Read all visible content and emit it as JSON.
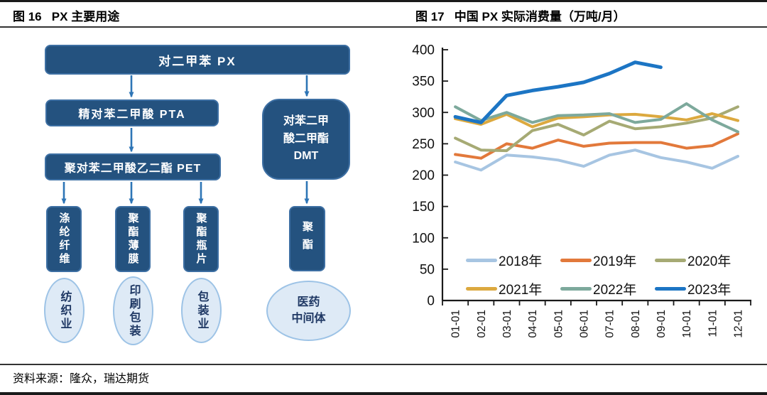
{
  "header": {
    "left_title": "图 16   PX 主要用途",
    "right_title": "图 17   中国 PX 实际消费量（万吨/月）"
  },
  "footer": {
    "source": "资料来源：隆众，瑞达期货"
  },
  "diagram": {
    "px": "对二甲苯 PX",
    "pta": "精对苯二甲酸 PTA",
    "pet": "聚对苯二甲酸乙二酯 PET",
    "dmt": "对苯二甲\n酸二甲酯\nDMT",
    "fiber": "涤纶纤维",
    "film": "聚酯薄膜",
    "bottle": "聚酯瓶片",
    "polyester": "聚酯",
    "textile": "纺织业",
    "printing": "印刷包装",
    "packaging": "包装业",
    "pharma": "医药\n中间体",
    "colors": {
      "node_fill": "#24527F",
      "node_border": "#3d6fa3",
      "arrow": "#2E75B6",
      "ellipse_fill": "#DEEAF6",
      "ellipse_border": "#9DC3E6"
    }
  },
  "chart_data": {
    "type": "line",
    "title": "中国PX实际消费量（万吨/月）",
    "xlabel": "",
    "ylabel": "",
    "unit": "万吨/月",
    "ylim": [
      0,
      400
    ],
    "y_ticks": [
      0,
      50,
      100,
      150,
      200,
      250,
      300,
      350,
      400
    ],
    "grid": false,
    "legend_position": "inside-bottom",
    "categories": [
      "01-01",
      "02-01",
      "03-01",
      "04-01",
      "05-01",
      "06-01",
      "07-01",
      "08-01",
      "09-01",
      "10-01",
      "11-01",
      "12-01"
    ],
    "series": [
      {
        "name": "2018年",
        "color": "#A7C5E2",
        "width": 4,
        "values": [
          221,
          208,
          232,
          229,
          224,
          214,
          232,
          240,
          228,
          221,
          211,
          230
        ]
      },
      {
        "name": "2019年",
        "color": "#E2793B",
        "width": 4,
        "values": [
          233,
          227,
          250,
          243,
          256,
          246,
          251,
          252,
          252,
          243,
          247,
          266
        ]
      },
      {
        "name": "2020年",
        "color": "#A6AA74",
        "width": 4,
        "values": [
          259,
          240,
          239,
          271,
          281,
          264,
          286,
          274,
          277,
          283,
          291,
          309
        ]
      },
      {
        "name": "2021年",
        "color": "#DCA93F",
        "width": 4,
        "values": [
          290,
          281,
          297,
          277,
          291,
          293,
          296,
          297,
          293,
          288,
          298,
          287
        ]
      },
      {
        "name": "2022年",
        "color": "#7DA99C",
        "width": 4,
        "values": [
          309,
          287,
          300,
          284,
          295,
          296,
          298,
          284,
          289,
          314,
          288,
          269
        ]
      },
      {
        "name": "2023年",
        "color": "#1C75C4",
        "width": 5,
        "values": [
          293,
          284,
          327,
          335,
          341,
          348,
          362,
          380,
          372
        ]
      }
    ]
  }
}
